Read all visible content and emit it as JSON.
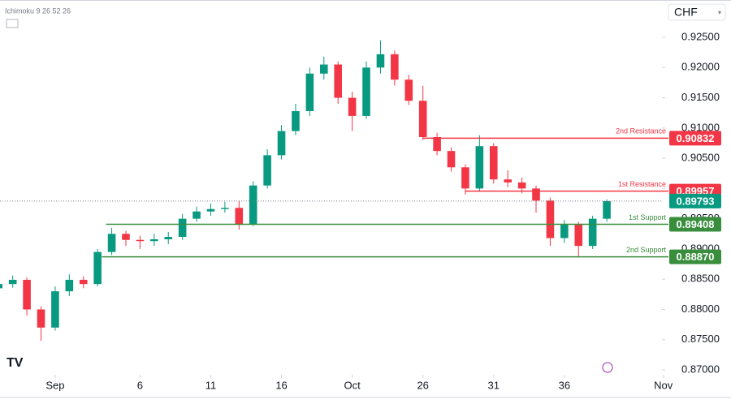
{
  "chart_data": {
    "type": "candlestick",
    "indicator": "Ichimoku 9 26 52 26",
    "currency": "CHF",
    "x": [
      -4,
      -3,
      -2,
      -1,
      0,
      1,
      2,
      3,
      4,
      5,
      6,
      7,
      8,
      9,
      10,
      11,
      12,
      13,
      14,
      15,
      16,
      17,
      18,
      19,
      20,
      21,
      22,
      23,
      24,
      25,
      26,
      27,
      28,
      29,
      30,
      31,
      32,
      33,
      34,
      35,
      36,
      37,
      38,
      39
    ],
    "open": [
      0.8835,
      0.8842,
      0.8849,
      0.88,
      0.877,
      0.883,
      0.8849,
      0.8842,
      0.8895,
      0.8925,
      0.8915,
      0.8913,
      0.8916,
      0.892,
      0.895,
      0.8962,
      0.8966,
      0.8968,
      0.894,
      0.9005,
      0.9055,
      0.9095,
      0.9128,
      0.919,
      0.9205,
      0.915,
      0.912,
      0.92,
      0.9222,
      0.918,
      0.9145,
      0.9085,
      0.9062,
      0.9035,
      0.9,
      0.907,
      0.9015,
      0.901,
      0.9,
      0.898,
      0.8918,
      0.894,
      0.8905,
      0.895
    ],
    "high": [
      0.885,
      0.8856,
      0.8853,
      0.8805,
      0.8838,
      0.8858,
      0.8855,
      0.89,
      0.8935,
      0.893,
      0.8922,
      0.8925,
      0.8928,
      0.8958,
      0.897,
      0.8975,
      0.8978,
      0.898,
      0.9012,
      0.9065,
      0.9105,
      0.914,
      0.92,
      0.9218,
      0.921,
      0.916,
      0.921,
      0.9245,
      0.9228,
      0.9188,
      0.917,
      0.9092,
      0.9068,
      0.904,
      0.9088,
      0.9075,
      0.903,
      0.9018,
      0.9005,
      0.8985,
      0.8948,
      0.8945,
      0.8955,
      0.8982
    ],
    "low": [
      0.8828,
      0.8836,
      0.879,
      0.8748,
      0.8765,
      0.8822,
      0.8835,
      0.8838,
      0.889,
      0.8905,
      0.89,
      0.8905,
      0.8908,
      0.8915,
      0.8945,
      0.8955,
      0.896,
      0.8932,
      0.8938,
      0.9,
      0.9048,
      0.9088,
      0.912,
      0.918,
      0.914,
      0.9095,
      0.9115,
      0.919,
      0.917,
      0.9138,
      0.908,
      0.9055,
      0.9028,
      0.899,
      0.8995,
      0.9008,
      0.9002,
      0.8992,
      0.896,
      0.8905,
      0.891,
      0.8888,
      0.89,
      0.8945
    ],
    "close": [
      0.8842,
      0.8849,
      0.88,
      0.877,
      0.883,
      0.8849,
      0.8842,
      0.8895,
      0.8925,
      0.8915,
      0.8913,
      0.8916,
      0.892,
      0.895,
      0.8962,
      0.8966,
      0.8968,
      0.894,
      0.9005,
      0.9055,
      0.9095,
      0.9128,
      0.919,
      0.9205,
      0.915,
      0.912,
      0.92,
      0.9222,
      0.918,
      0.9145,
      0.9085,
      0.9062,
      0.9035,
      0.9,
      0.907,
      0.9015,
      0.901,
      0.9,
      0.898,
      0.8918,
      0.894,
      0.8905,
      0.895,
      0.8979
    ],
    "up_color": "#089981",
    "down_color": "#f23645",
    "xlim": [
      -3.9,
      42.9
    ],
    "xticks": [
      {
        "value": 0,
        "label": "Sep"
      },
      6,
      11,
      16,
      {
        "value": 21,
        "label": "Oct"
      },
      26,
      31,
      36,
      {
        "value": 43,
        "label": "Nov"
      }
    ],
    "ylim": [
      0.8692,
      0.9305
    ],
    "yticks": [
      {
        "value": 0.87,
        "label": "0.87000"
      },
      {
        "value": 0.875,
        "label": "0.87500"
      },
      {
        "value": 0.88,
        "label": "0.88000"
      },
      {
        "value": 0.885,
        "label": "0.88500"
      },
      {
        "value": 0.89,
        "label": "0.89000"
      },
      {
        "value": 0.895,
        "label": "0.89500"
      },
      {
        "value": 0.9,
        "label": "0.90000"
      },
      {
        "value": 0.905,
        "label": "0.90500"
      },
      {
        "value": 0.91,
        "label": "0.91000"
      },
      {
        "value": 0.915,
        "label": "0.91500"
      },
      {
        "value": 0.92,
        "label": "0.92000"
      },
      {
        "value": 0.925,
        "label": "0.92500"
      }
    ],
    "levels": [
      {
        "name": "2nd Resistance",
        "value": 0.90832,
        "color": "#f23645",
        "start": 26
      },
      {
        "name": "1st Resistance",
        "value": 0.89957,
        "color": "#f23645",
        "start": 29
      },
      {
        "name": "1st Support",
        "value": 0.89408,
        "color": "#388e3c",
        "start": 3.6
      },
      {
        "name": "2nd Support",
        "value": 0.8887,
        "value_label": "0.88870",
        "color": "#388e3c",
        "start": 3.3
      }
    ],
    "last_price": 0.89793,
    "last_color": "#089981"
  }
}
